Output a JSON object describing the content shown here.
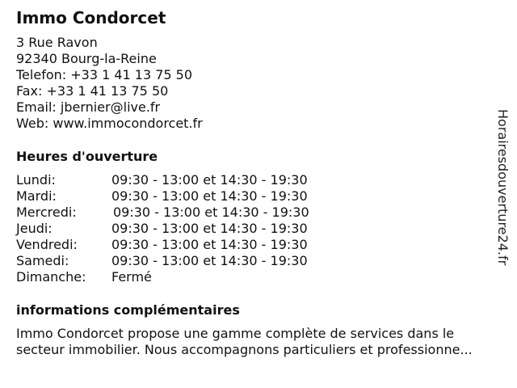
{
  "business": {
    "name": "Immo Condorcet",
    "address_line1": "3 Rue Ravon",
    "address_line2": "92340 Bourg-la-Reine",
    "phone": "Telefon: +33 1 41 13 75 50",
    "fax": "Fax: +33 1 41 13 75 50",
    "email": "Email: jbernier@live.fr",
    "web": "Web: www.immocondorcet.fr"
  },
  "hours": {
    "heading": "Heures d'ouverture",
    "days": [
      {
        "day": "Lundi:",
        "time": "09:30 - 13:00 et 14:30 - 19:30"
      },
      {
        "day": "Mardi:",
        "time": "09:30 - 13:00 et 14:30 - 19:30"
      },
      {
        "day": "Mercredi:",
        "time": "09:30 - 13:00 et 14:30 - 19:30"
      },
      {
        "day": "Jeudi:",
        "time": "09:30 - 13:00 et 14:30 - 19:30"
      },
      {
        "day": "Vendredi:",
        "time": "09:30 - 13:00 et 14:30 - 19:30"
      },
      {
        "day": "Samedi:",
        "time": "09:30 - 13:00 et 14:30 - 19:30"
      },
      {
        "day": "Dimanche:",
        "time": "Fermé"
      }
    ]
  },
  "info": {
    "heading": "informations complémentaires",
    "text_line1": "Immo Condorcet propose une gamme complète de services dans le",
    "text_line2": "secteur immobilier. Nous accompagnons particuliers et professionne..."
  },
  "watermark": "Horairesdouverture24.fr"
}
